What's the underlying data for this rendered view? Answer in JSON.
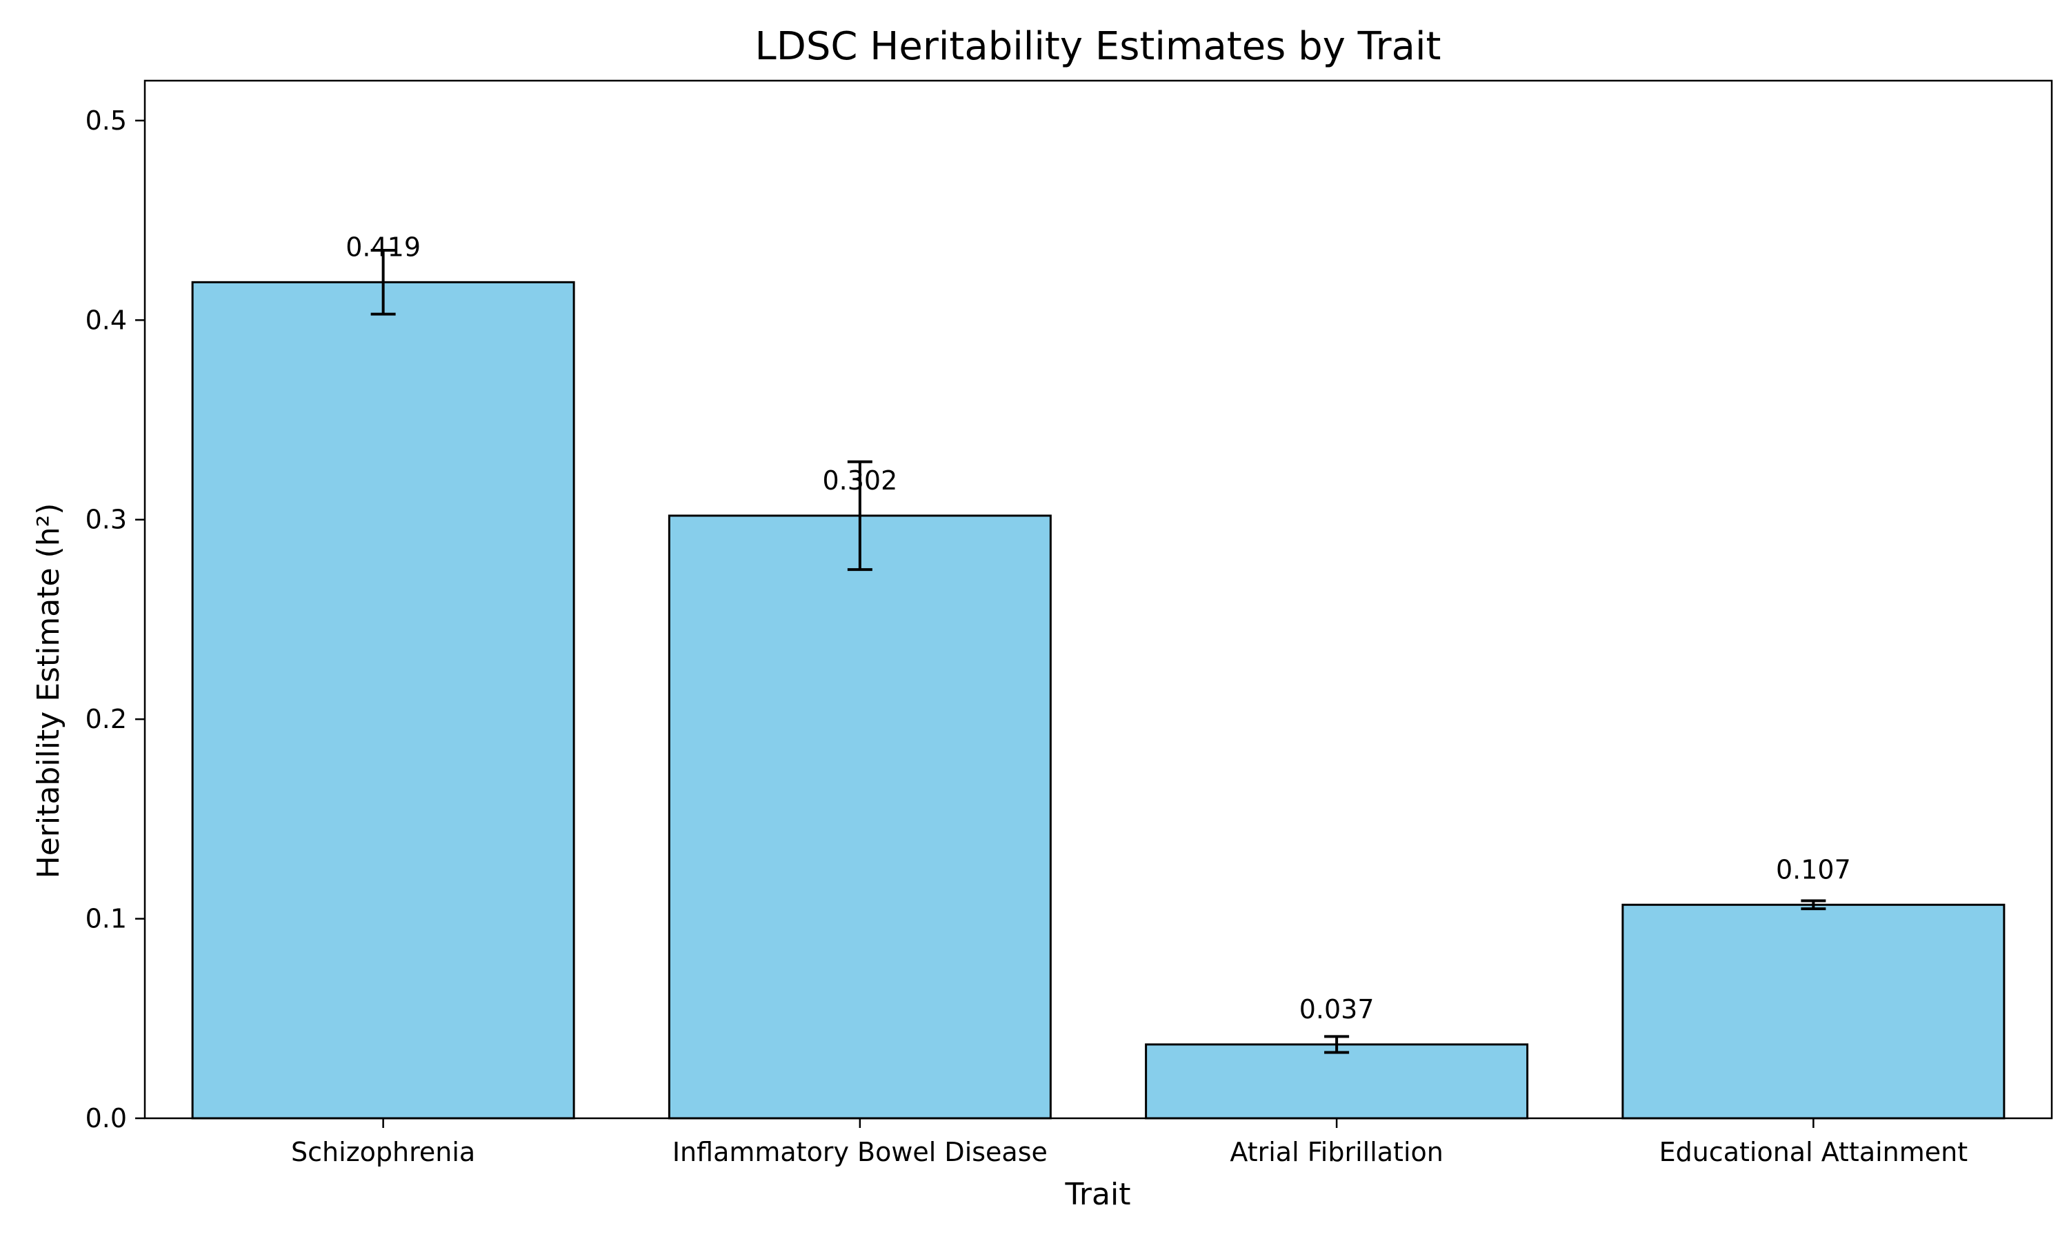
{
  "chart_data": {
    "type": "bar",
    "title": "LDSC Heritability Estimates by Trait",
    "xlabel": "Trait",
    "ylabel": "Heritability Estimate (h²)",
    "categories": [
      "Schizophrenia",
      "Inflammatory Bowel Disease",
      "Atrial Fibrillation",
      "Educational Attainment"
    ],
    "values": [
      0.419,
      0.302,
      0.037,
      0.107
    ],
    "errors": [
      0.016,
      0.027,
      0.004,
      0.002
    ],
    "value_labels": [
      "0.419",
      "0.302",
      "0.037",
      "0.107"
    ],
    "ylim": [
      0,
      0.52
    ],
    "yticks": [
      0.0,
      0.1,
      0.2,
      0.3,
      0.4,
      0.5
    ],
    "ytick_labels": [
      "0.0",
      "0.1",
      "0.2",
      "0.3",
      "0.4",
      "0.5"
    ],
    "grid": false,
    "colors": {
      "bar_fill": "#87CEEB",
      "bar_edge": "#000000",
      "error_bar": "#000000"
    }
  }
}
